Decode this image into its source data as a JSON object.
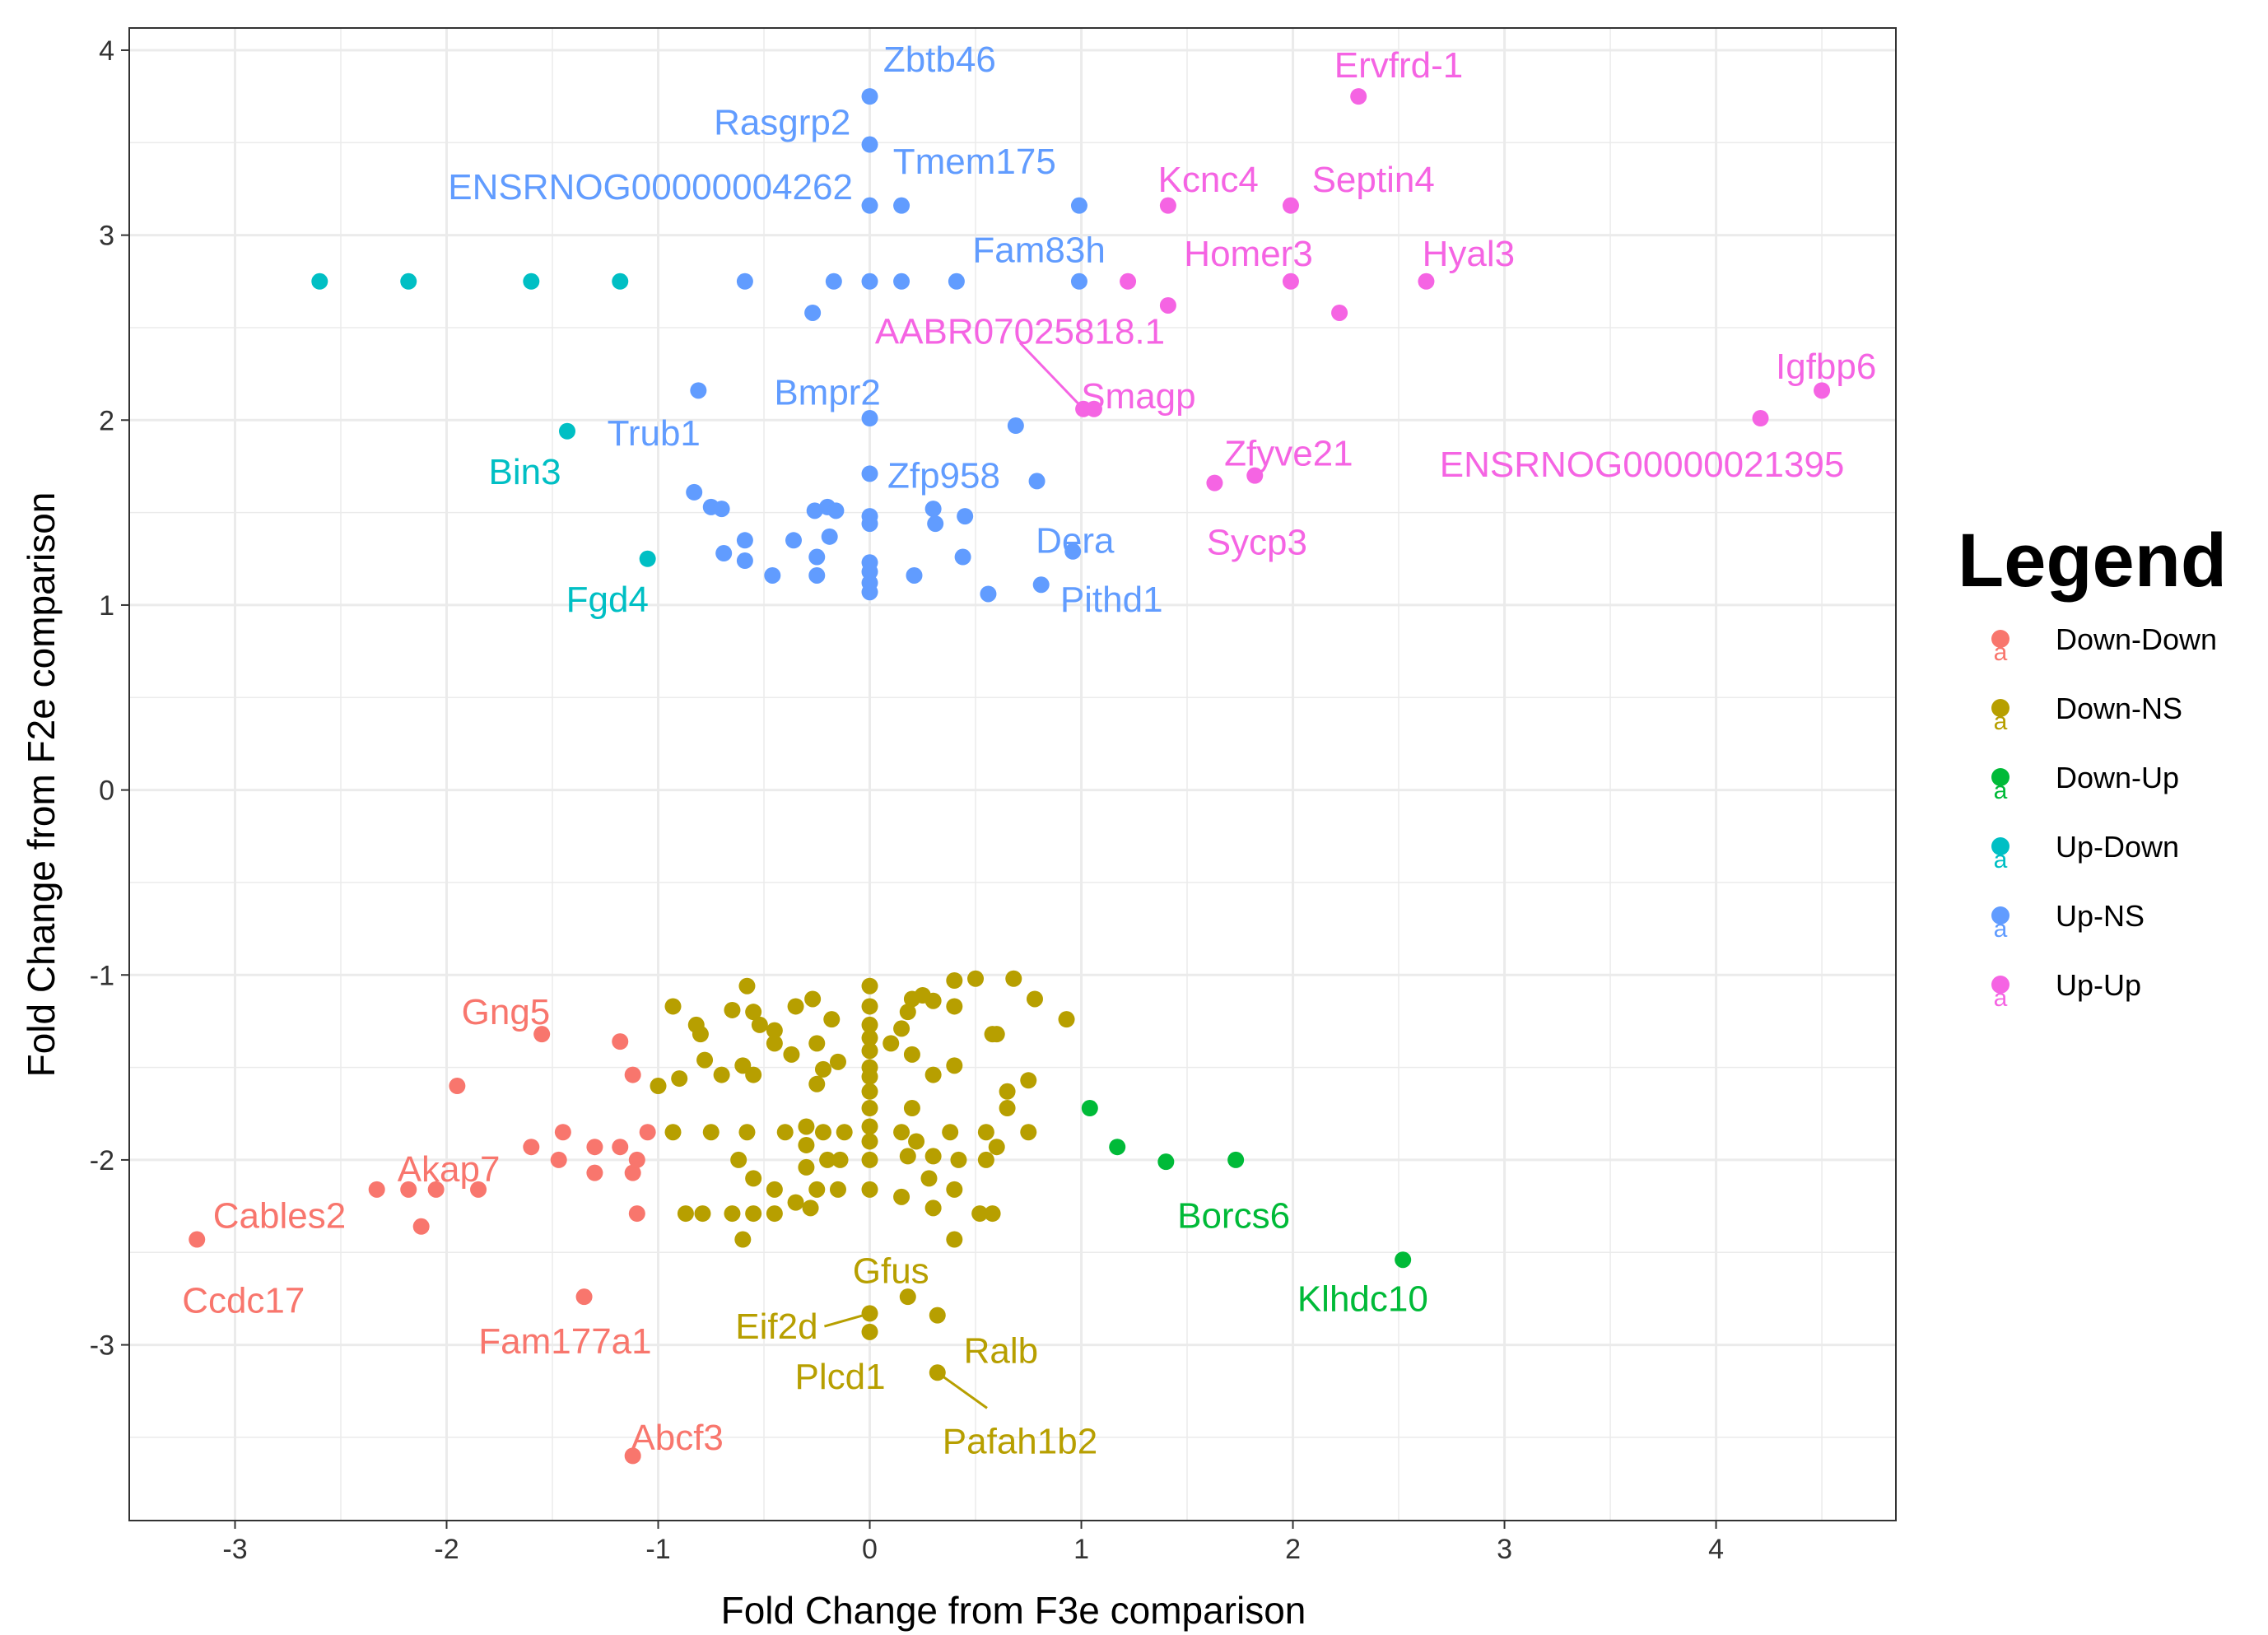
{
  "chart_data": {
    "type": "scatter",
    "title": "",
    "xlabel": "Fold Change from F3e comparison",
    "ylabel": "Fold Change from F2e comparison",
    "xlim": [
      -3.5,
      4.85
    ],
    "ylim": [
      -3.95,
      4.12
    ],
    "x_ticks": [
      -3,
      -2,
      -1,
      0,
      1,
      2,
      3,
      4
    ],
    "y_ticks": [
      -3,
      -2,
      -1,
      0,
      1,
      2,
      3,
      4
    ],
    "x_tick_labels": [
      "-3",
      "-2",
      "-1",
      "0",
      "1",
      "2",
      "3",
      "4"
    ],
    "y_tick_labels": [
      "-3",
      "-2",
      "-1",
      "0",
      "1",
      "2",
      "3",
      "4"
    ],
    "grid": true,
    "legend": {
      "title": "Legend",
      "position": "right",
      "glyph": "a"
    },
    "series": [
      {
        "name": "Down-Down",
        "color": "#F8766D",
        "points": [
          [
            -3.18,
            -2.43
          ],
          [
            -2.33,
            -2.16
          ],
          [
            -2.18,
            -2.16
          ],
          [
            -2.05,
            -2.16
          ],
          [
            -2.12,
            -2.36
          ],
          [
            -1.95,
            -1.6
          ],
          [
            -1.85,
            -2.16
          ],
          [
            -1.55,
            -1.32
          ],
          [
            -1.6,
            -1.93
          ],
          [
            -1.45,
            -1.85
          ],
          [
            -1.47,
            -2.0
          ],
          [
            -1.3,
            -1.93
          ],
          [
            -1.3,
            -2.07
          ],
          [
            -1.18,
            -1.93
          ],
          [
            -1.18,
            -1.36
          ],
          [
            -1.12,
            -1.54
          ],
          [
            -1.12,
            -2.07
          ],
          [
            -1.1,
            -2.29
          ],
          [
            -1.1,
            -2.0
          ],
          [
            -1.05,
            -1.85
          ],
          [
            -1.35,
            -2.74
          ],
          [
            -1.12,
            -3.6
          ]
        ]
      },
      {
        "name": "Down-NS",
        "color": "#B79F00",
        "points": [
          [
            -0.93,
            -1.17
          ],
          [
            -0.82,
            -1.27
          ],
          [
            -0.8,
            -1.32
          ],
          [
            -0.65,
            -1.19
          ],
          [
            -0.58,
            -1.06
          ],
          [
            -0.55,
            -1.2
          ],
          [
            -0.52,
            -1.27
          ],
          [
            -0.45,
            -1.3
          ],
          [
            -0.35,
            -1.17
          ],
          [
            -0.27,
            -1.13
          ],
          [
            -0.18,
            -1.24
          ],
          [
            0.18,
            -1.2
          ],
          [
            0.15,
            -1.29
          ],
          [
            0.2,
            -1.13
          ],
          [
            0.25,
            -1.11
          ],
          [
            0.3,
            -1.14
          ],
          [
            0.4,
            -1.17
          ],
          [
            0.4,
            -1.03
          ],
          [
            0.5,
            -1.02
          ],
          [
            0.6,
            -1.32
          ],
          [
            0.58,
            -1.32
          ],
          [
            0.68,
            -1.02
          ],
          [
            0.78,
            -1.13
          ],
          [
            0.93,
            -1.24
          ],
          [
            -0.9,
            -1.56
          ],
          [
            -0.78,
            -1.46
          ],
          [
            -0.7,
            -1.54
          ],
          [
            -0.6,
            -1.49
          ],
          [
            -0.55,
            -1.54
          ],
          [
            -0.45,
            -1.37
          ],
          [
            -0.37,
            -1.43
          ],
          [
            -0.25,
            -1.37
          ],
          [
            -0.22,
            -1.51
          ],
          [
            -0.25,
            -1.59
          ],
          [
            -0.15,
            -1.47
          ],
          [
            0.1,
            -1.37
          ],
          [
            0.2,
            -1.43
          ],
          [
            0.3,
            -1.54
          ],
          [
            0.4,
            -1.49
          ],
          [
            0.65,
            -1.63
          ],
          [
            0.75,
            -1.57
          ],
          [
            -1.0,
            -1.6
          ],
          [
            -0.93,
            -1.85
          ],
          [
            -0.75,
            -1.85
          ],
          [
            -0.58,
            -1.85
          ],
          [
            -0.4,
            -1.85
          ],
          [
            -0.3,
            -1.82
          ],
          [
            -0.22,
            -1.85
          ],
          [
            -0.12,
            -1.85
          ],
          [
            0.15,
            -1.85
          ],
          [
            0.22,
            -1.9
          ],
          [
            0.38,
            -1.85
          ],
          [
            0.55,
            -1.85
          ],
          [
            0.75,
            -1.85
          ],
          [
            0.65,
            -1.72
          ],
          [
            0.2,
            -1.72
          ],
          [
            -0.3,
            -1.92
          ],
          [
            -0.2,
            -2.0
          ],
          [
            -0.14,
            -2.0
          ],
          [
            0.18,
            -1.98
          ],
          [
            0.3,
            -1.98
          ],
          [
            0.42,
            -2.0
          ],
          [
            0.55,
            -2.0
          ],
          [
            0.6,
            -1.93
          ],
          [
            -0.62,
            -2.0
          ],
          [
            -0.55,
            -2.1
          ],
          [
            -0.45,
            -2.16
          ],
          [
            -0.3,
            -2.04
          ],
          [
            -0.25,
            -2.16
          ],
          [
            -0.15,
            -2.16
          ],
          [
            0.28,
            -2.1
          ],
          [
            0.4,
            -2.16
          ],
          [
            -0.87,
            -2.29
          ],
          [
            -0.79,
            -2.29
          ],
          [
            -0.65,
            -2.29
          ],
          [
            -0.55,
            -2.29
          ],
          [
            -0.45,
            -2.29
          ],
          [
            -0.35,
            -2.23
          ],
          [
            -0.28,
            -2.26
          ],
          [
            0.15,
            -2.2
          ],
          [
            0.3,
            -2.26
          ],
          [
            0.52,
            -2.29
          ],
          [
            0.58,
            -2.29
          ],
          [
            -0.6,
            -2.43
          ],
          [
            0.4,
            -2.43
          ],
          [
            0.0,
            -1.06
          ],
          [
            0.0,
            -1.17
          ],
          [
            0.0,
            -1.27
          ],
          [
            0.0,
            -1.34
          ],
          [
            0.0,
            -1.41
          ],
          [
            0.0,
            -1.5
          ],
          [
            0.0,
            -1.55
          ],
          [
            0.0,
            -1.63
          ],
          [
            0.0,
            -1.72
          ],
          [
            0.0,
            -1.82
          ],
          [
            0.0,
            -1.9
          ],
          [
            0.0,
            -2.0
          ],
          [
            0.0,
            -2.16
          ],
          [
            0.0,
            -2.83
          ],
          [
            0.0,
            -2.93
          ],
          [
            0.18,
            -2.74
          ],
          [
            0.32,
            -2.84
          ],
          [
            0.32,
            -3.15
          ]
        ]
      },
      {
        "name": "Down-Up",
        "color": "#00BA38",
        "points": [
          [
            1.04,
            -1.72
          ],
          [
            1.17,
            -1.93
          ],
          [
            1.4,
            -2.01
          ],
          [
            1.73,
            -2.0
          ],
          [
            2.52,
            -2.54
          ]
        ]
      },
      {
        "name": "Up-Down",
        "color": "#00BFC4",
        "points": [
          [
            -2.6,
            2.75
          ],
          [
            -2.18,
            2.75
          ],
          [
            -1.6,
            2.75
          ],
          [
            -1.18,
            2.75
          ],
          [
            -1.43,
            1.94
          ],
          [
            -1.05,
            1.25
          ]
        ]
      },
      {
        "name": "Up-NS",
        "color": "#619CFF",
        "points": [
          [
            0.0,
            3.75
          ],
          [
            0.0,
            3.49
          ],
          [
            0.0,
            3.16
          ],
          [
            0.15,
            3.16
          ],
          [
            0.99,
            3.16
          ],
          [
            -0.59,
            2.75
          ],
          [
            -0.17,
            2.75
          ],
          [
            0.0,
            2.75
          ],
          [
            0.15,
            2.75
          ],
          [
            0.41,
            2.75
          ],
          [
            0.99,
            2.75
          ],
          [
            -0.27,
            2.58
          ],
          [
            -0.81,
            2.16
          ],
          [
            0.0,
            2.01
          ],
          [
            0.69,
            1.97
          ],
          [
            0.0,
            1.71
          ],
          [
            0.79,
            1.67
          ],
          [
            -0.83,
            1.61
          ],
          [
            -0.75,
            1.53
          ],
          [
            -0.7,
            1.52
          ],
          [
            -0.26,
            1.51
          ],
          [
            -0.2,
            1.53
          ],
          [
            -0.16,
            1.51
          ],
          [
            0.0,
            1.48
          ],
          [
            0.0,
            1.44
          ],
          [
            0.3,
            1.52
          ],
          [
            0.45,
            1.48
          ],
          [
            0.31,
            1.44
          ],
          [
            -0.59,
            1.35
          ],
          [
            -0.19,
            1.37
          ],
          [
            0.0,
            1.23
          ],
          [
            -0.69,
            1.28
          ],
          [
            -0.59,
            1.24
          ],
          [
            -0.36,
            1.35
          ],
          [
            -0.25,
            1.26
          ],
          [
            0.0,
            1.18
          ],
          [
            0.44,
            1.26
          ],
          [
            0.96,
            1.29
          ],
          [
            -0.46,
            1.16
          ],
          [
            -0.25,
            1.16
          ],
          [
            0.0,
            1.12
          ],
          [
            0.0,
            1.07
          ],
          [
            0.21,
            1.16
          ],
          [
            0.56,
            1.06
          ],
          [
            0.81,
            1.11
          ]
        ]
      },
      {
        "name": "Up-Up",
        "color": "#F564E3",
        "points": [
          [
            2.31,
            3.75
          ],
          [
            1.41,
            3.16
          ],
          [
            1.99,
            3.16
          ],
          [
            1.22,
            2.75
          ],
          [
            1.99,
            2.75
          ],
          [
            2.63,
            2.75
          ],
          [
            1.41,
            2.62
          ],
          [
            2.22,
            2.58
          ],
          [
            1.01,
            2.06
          ],
          [
            1.06,
            2.06
          ],
          [
            4.21,
            2.01
          ],
          [
            4.5,
            2.16
          ],
          [
            1.63,
            1.66
          ],
          [
            1.82,
            1.7
          ]
        ]
      }
    ],
    "labels": [
      {
        "text": "Zbtb46",
        "series": "Up-NS",
        "x": 0.33,
        "y": 3.95,
        "anchor": "middle"
      },
      {
        "text": "Rasgrp2",
        "series": "Up-NS",
        "x": -0.09,
        "y": 3.61,
        "anchor": "end"
      },
      {
        "text": "Tmem175",
        "series": "Up-NS",
        "x": 0.11,
        "y": 3.4,
        "anchor": "start"
      },
      {
        "text": "ENSRNOG00000004262",
        "series": "Up-NS",
        "x": -0.08,
        "y": 3.26,
        "anchor": "end"
      },
      {
        "text": "Fam83h",
        "series": "Up-NS",
        "x": 0.8,
        "y": 2.92,
        "anchor": "middle"
      },
      {
        "text": "Bmpr2",
        "series": "Up-NS",
        "x": -0.2,
        "y": 2.15,
        "anchor": "middle"
      },
      {
        "text": "Trub1",
        "series": "Up-NS",
        "x": -0.8,
        "y": 1.93,
        "anchor": "end"
      },
      {
        "text": "Zfp958",
        "series": "Up-NS",
        "x": 0.35,
        "y": 1.7,
        "anchor": "middle"
      },
      {
        "text": "Dera",
        "series": "Up-NS",
        "x": 0.97,
        "y": 1.35,
        "anchor": "middle"
      },
      {
        "text": "Pithd1",
        "series": "Up-NS",
        "x": 0.9,
        "y": 1.03,
        "anchor": "start"
      },
      {
        "text": "Bin3",
        "series": "Up-Down",
        "x": -1.63,
        "y": 1.72,
        "anchor": "middle"
      },
      {
        "text": "Fgd4",
        "series": "Up-Down",
        "x": -1.24,
        "y": 1.03,
        "anchor": "middle"
      },
      {
        "text": "Ervfrd-1",
        "series": "Up-Up",
        "x": 2.5,
        "y": 3.92,
        "anchor": "middle"
      },
      {
        "text": "Kcnc4",
        "series": "Up-Up",
        "x": 1.6,
        "y": 3.3,
        "anchor": "middle"
      },
      {
        "text": "Septin4",
        "series": "Up-Up",
        "x": 2.38,
        "y": 3.3,
        "anchor": "middle"
      },
      {
        "text": "Homer3",
        "series": "Up-Up",
        "x": 1.79,
        "y": 2.9,
        "anchor": "middle"
      },
      {
        "text": "Hyal3",
        "series": "Up-Up",
        "x": 2.83,
        "y": 2.9,
        "anchor": "middle"
      },
      {
        "text": "AABR07025818.1",
        "series": "Up-Up",
        "x": 0.71,
        "y": 2.48,
        "anchor": "middle",
        "leader_to": [
          1.01,
          2.06
        ]
      },
      {
        "text": "Smagp",
        "series": "Up-Up",
        "x": 1.27,
        "y": 2.13,
        "anchor": "middle"
      },
      {
        "text": "Igfbp6",
        "series": "Up-Up",
        "x": 4.52,
        "y": 2.29,
        "anchor": "middle"
      },
      {
        "text": "Zfyve21",
        "series": "Up-Up",
        "x": 1.98,
        "y": 1.82,
        "anchor": "middle"
      },
      {
        "text": "ENSRNOG00000021395",
        "series": "Up-Up",
        "x": 3.65,
        "y": 1.76,
        "anchor": "middle"
      },
      {
        "text": "Sycp3",
        "series": "Up-Up",
        "x": 1.83,
        "y": 1.34,
        "anchor": "middle"
      },
      {
        "text": "Gng5",
        "series": "Down-Down",
        "x": -1.72,
        "y": -1.2,
        "anchor": "middle"
      },
      {
        "text": "Akap7",
        "series": "Down-Down",
        "x": -1.99,
        "y": -2.05,
        "anchor": "middle"
      },
      {
        "text": "Cables2",
        "series": "Down-Down",
        "x": -2.79,
        "y": -2.3,
        "anchor": "middle"
      },
      {
        "text": "Ccdc17",
        "series": "Down-Down",
        "x": -2.96,
        "y": -2.76,
        "anchor": "middle"
      },
      {
        "text": "Fam177a1",
        "series": "Down-Down",
        "x": -1.44,
        "y": -2.98,
        "anchor": "middle"
      },
      {
        "text": "Abcf3",
        "series": "Down-Down",
        "x": -0.91,
        "y": -3.5,
        "anchor": "middle"
      },
      {
        "text": "Borcs6",
        "series": "Down-Up",
        "x": 1.72,
        "y": -2.3,
        "anchor": "middle"
      },
      {
        "text": "Klhdc10",
        "series": "Down-Up",
        "x": 2.33,
        "y": -2.75,
        "anchor": "middle"
      },
      {
        "text": "Gfus",
        "series": "Down-NS",
        "x": 0.1,
        "y": -2.6,
        "anchor": "middle"
      },
      {
        "text": "Eif2d",
        "series": "Down-NS",
        "x": -0.44,
        "y": -2.9,
        "anchor": "middle",
        "leader_to": [
          0.0,
          -2.83
        ]
      },
      {
        "text": "Ralb",
        "series": "Down-NS",
        "x": 0.62,
        "y": -3.03,
        "anchor": "middle"
      },
      {
        "text": "Plcd1",
        "series": "Down-NS",
        "x": -0.14,
        "y": -3.17,
        "anchor": "middle"
      },
      {
        "text": "Pafah1b2",
        "series": "Down-NS",
        "x": 0.71,
        "y": -3.52,
        "anchor": "middle",
        "leader_to": [
          0.32,
          -3.15
        ]
      }
    ]
  }
}
